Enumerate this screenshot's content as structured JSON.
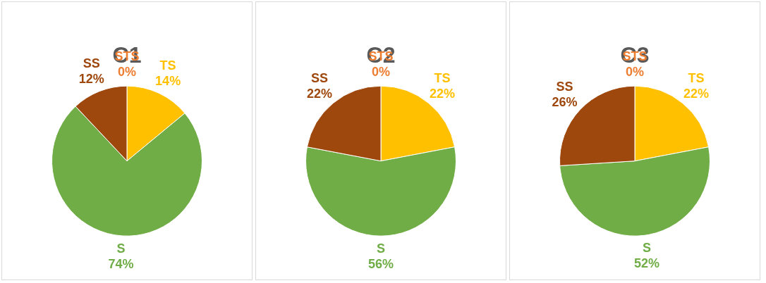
{
  "chart_data": [
    {
      "type": "pie",
      "title": "C1",
      "categories": [
        "STS",
        "TS",
        "S",
        "SS"
      ],
      "values": [
        0,
        14,
        74,
        12
      ],
      "value_labels": [
        "0%",
        "14%",
        "74%",
        "12%"
      ],
      "colors": [
        "#ed7d31",
        "#ffc000",
        "#70ad47",
        "#9e480e"
      ],
      "data_labels": true
    },
    {
      "type": "pie",
      "title": "C2",
      "categories": [
        "STS",
        "TS",
        "S",
        "SS"
      ],
      "values": [
        0,
        22,
        56,
        22
      ],
      "value_labels": [
        "0%",
        "22%",
        "56%",
        "22%"
      ],
      "colors": [
        "#ed7d31",
        "#ffc000",
        "#70ad47",
        "#9e480e"
      ],
      "data_labels": true
    },
    {
      "type": "pie",
      "title": "C3",
      "categories": [
        "STS",
        "TS",
        "S",
        "SS"
      ],
      "values": [
        0,
        22,
        52,
        26
      ],
      "value_labels": [
        "0%",
        "22%",
        "52%",
        "26%"
      ],
      "colors": [
        "#ed7d31",
        "#ffc000",
        "#70ad47",
        "#9e480e"
      ],
      "data_labels": true
    }
  ]
}
